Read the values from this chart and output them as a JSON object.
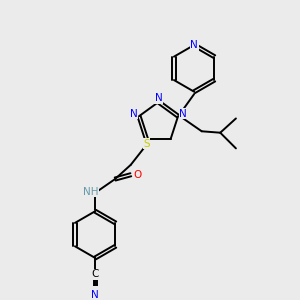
{
  "bg_color": "#ebebeb",
  "bond_color": "#000000",
  "N_color": "#0000ff",
  "O_color": "#ff0000",
  "S_color": "#cccc00",
  "figsize": [
    3.0,
    3.0
  ],
  "dpi": 100,
  "xlim": [
    0,
    10
  ],
  "ylim": [
    0,
    10
  ],
  "lw": 1.4,
  "label_fs": 7.0
}
